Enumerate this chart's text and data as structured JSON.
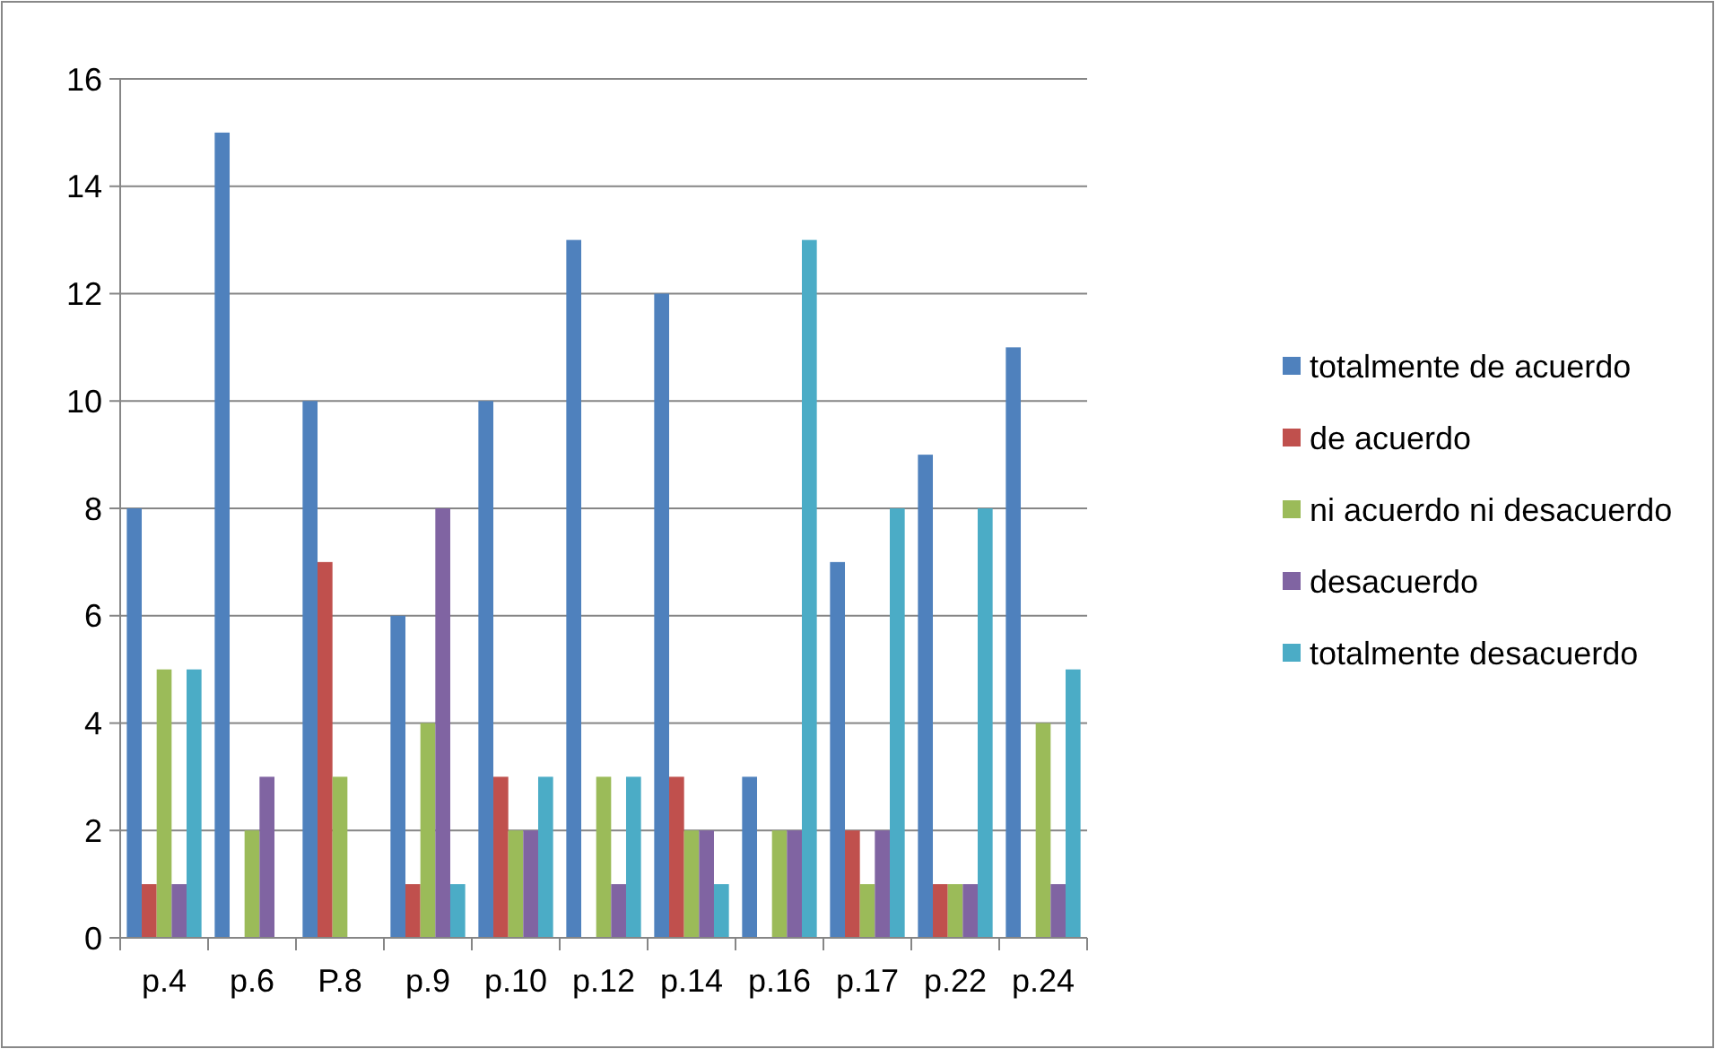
{
  "chart_data": {
    "type": "bar",
    "categories": [
      "p.4",
      "p.6",
      "P.8",
      "p.9",
      "p.10",
      "p.12",
      "p.14",
      "p.16",
      "p.17",
      "p.22",
      "p.24"
    ],
    "series": [
      {
        "name": "totalmente de acuerdo",
        "color": "#4f81bd",
        "values": [
          8,
          15,
          10,
          6,
          10,
          13,
          12,
          3,
          7,
          9,
          11
        ]
      },
      {
        "name": "de acuerdo",
        "color": "#c0504d",
        "values": [
          1,
          0,
          7,
          1,
          3,
          0,
          3,
          0,
          2,
          1,
          0
        ]
      },
      {
        "name": "ni acuerdo ni desacuerdo",
        "color": "#9bbb59",
        "values": [
          5,
          2,
          3,
          4,
          2,
          3,
          2,
          2,
          1,
          1,
          4
        ]
      },
      {
        "name": "desacuerdo",
        "color": "#8064a2",
        "values": [
          1,
          3,
          0,
          8,
          2,
          1,
          2,
          2,
          2,
          1,
          1
        ]
      },
      {
        "name": "totalmente desacuerdo",
        "color": "#4bacc6",
        "values": [
          5,
          0,
          0,
          1,
          3,
          3,
          1,
          13,
          8,
          8,
          5
        ]
      }
    ],
    "ylim": [
      0,
      16
    ],
    "yticks": [
      0,
      2,
      4,
      6,
      8,
      10,
      12,
      14,
      16
    ],
    "grid": "y",
    "legend": "right"
  }
}
